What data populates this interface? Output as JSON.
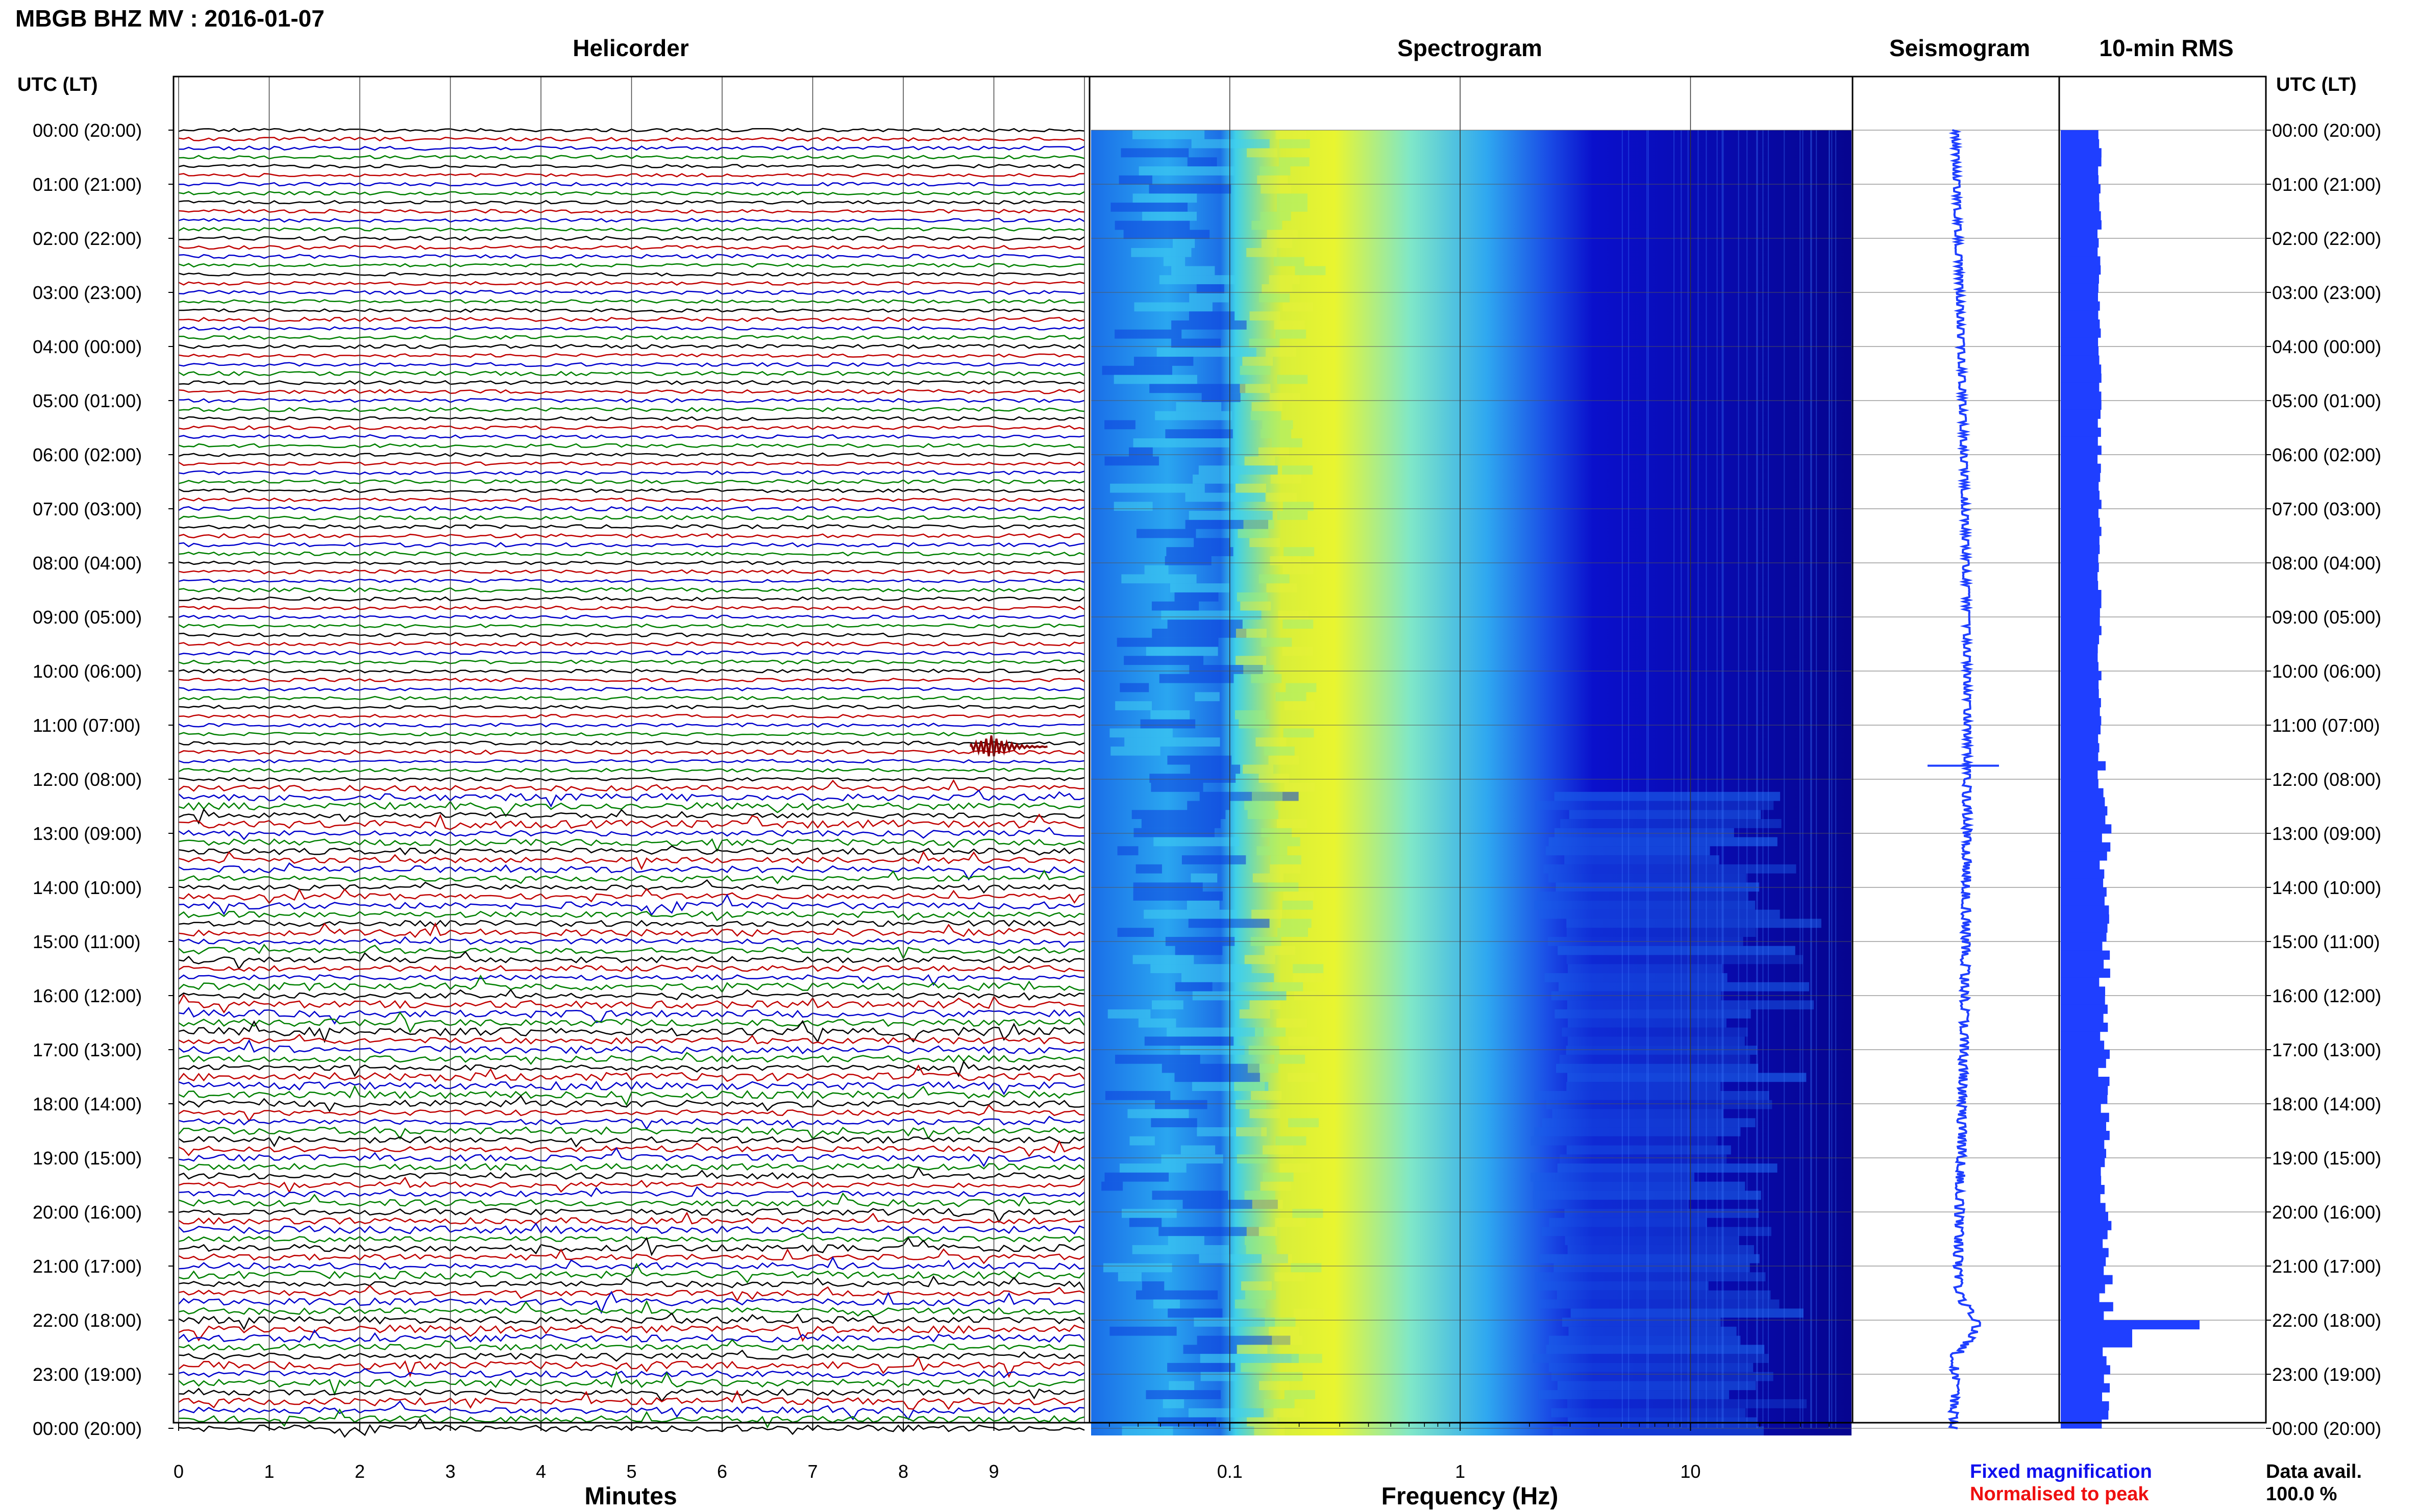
{
  "header": {
    "title": "MBGB BHZ MV : 2016-01-07",
    "time_label_left": "UTC (LT)",
    "time_label_right": "UTC (LT)"
  },
  "panels": {
    "helicorder": "Helicorder",
    "spectrogram": "Spectrogram",
    "seismogram": "Seismogram",
    "rms": "10-min RMS"
  },
  "axes": {
    "helicorder_xlabel": "Minutes",
    "spectrogram_xlabel": "Frequency (Hz)",
    "helicorder_ticks": [
      "0",
      "1",
      "2",
      "3",
      "4",
      "5",
      "6",
      "7",
      "8",
      "9"
    ],
    "spectrogram_ticks": [
      "0.1",
      "1",
      "10"
    ],
    "hour_labels": [
      "00:00 (20:00)",
      "01:00 (21:00)",
      "02:00 (22:00)",
      "03:00 (23:00)",
      "04:00 (00:00)",
      "05:00 (01:00)",
      "06:00 (02:00)",
      "07:00 (03:00)",
      "08:00 (04:00)",
      "09:00 (05:00)",
      "10:00 (06:00)",
      "11:00 (07:00)",
      "12:00 (08:00)",
      "13:00 (09:00)",
      "14:00 (10:00)",
      "15:00 (11:00)",
      "16:00 (12:00)",
      "17:00 (13:00)",
      "18:00 (14:00)",
      "19:00 (15:00)",
      "20:00 (16:00)",
      "21:00 (17:00)",
      "22:00 (18:00)",
      "23:00 (19:00)",
      "00:00 (20:00)"
    ]
  },
  "legend": {
    "fixed": "Fixed magnification",
    "normalised": "Normalised to peak",
    "fixed_color": "#1010ee",
    "normalised_color": "#ee1010"
  },
  "data_availability": {
    "label": "Data avail.",
    "value": "100.0 %"
  },
  "colors": {
    "trace_cycle": [
      "#000000",
      "#c00000",
      "#0000cc",
      "#008000"
    ],
    "seismogram": "#1f3fff",
    "rms": "#1f3fff",
    "event": "#8b0000"
  },
  "chart_data": [
    {
      "type": "line",
      "name": "Helicorder",
      "x_range_minutes": [
        0,
        10
      ],
      "rows": 144,
      "notes": "10-minute lines per row, colour cycle black/red/blue/green",
      "events": [
        {
          "hour": 11.4,
          "minute": 9.0
        }
      ]
    },
    {
      "type": "heatmap",
      "name": "Spectrogram",
      "xscale": "log",
      "xlim_hz": [
        0.025,
        50
      ],
      "peak_band_hz": [
        0.15,
        0.5
      ],
      "colormap": [
        "#00008b",
        "#0033ff",
        "#00bfff",
        "#7fffd4",
        "#ffff00"
      ]
    },
    {
      "type": "line",
      "name": "Seismogram",
      "notes": "hourly trace, events near 11:45 and 22:15"
    },
    {
      "type": "bar",
      "name": "10-min RMS",
      "orientation": "horizontal",
      "bins": 144,
      "baseline_level": 0.18,
      "spike_levels": [
        {
          "hour": 11.7,
          "level": 0.22
        },
        {
          "hour": 22.05,
          "level": 0.68
        },
        {
          "hour": 22.25,
          "level": 0.35
        }
      ]
    }
  ]
}
